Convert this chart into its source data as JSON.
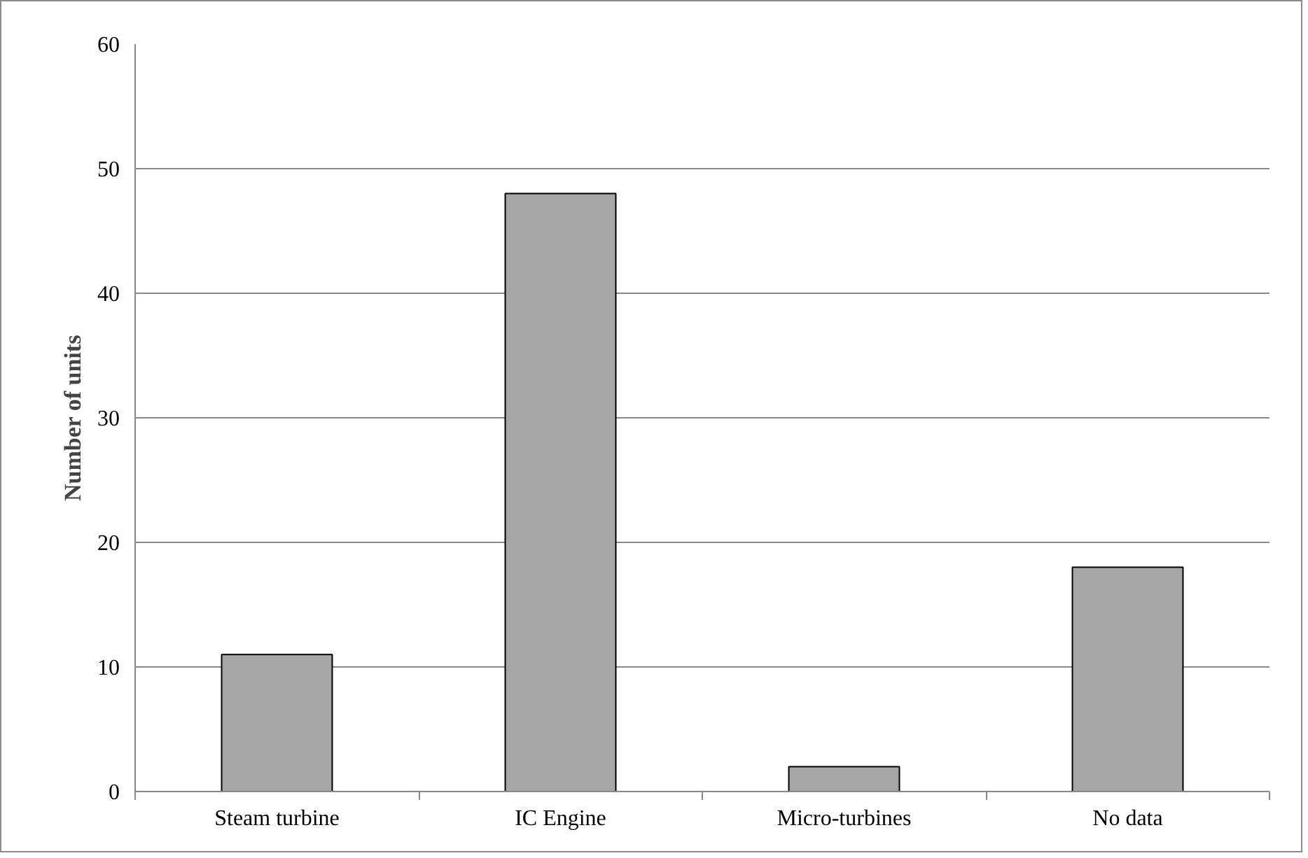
{
  "chart_data": {
    "type": "bar",
    "ylabel": "Number of units",
    "categories": [
      "Steam turbine",
      "IC Engine",
      "Micro-turbines",
      "No data"
    ],
    "values": [
      11,
      48,
      2,
      18
    ],
    "color": "#a6a6a6",
    "ylim": [
      0,
      60
    ],
    "yticks": [
      0,
      10,
      20,
      30,
      40,
      50,
      60
    ],
    "grid": "y"
  }
}
